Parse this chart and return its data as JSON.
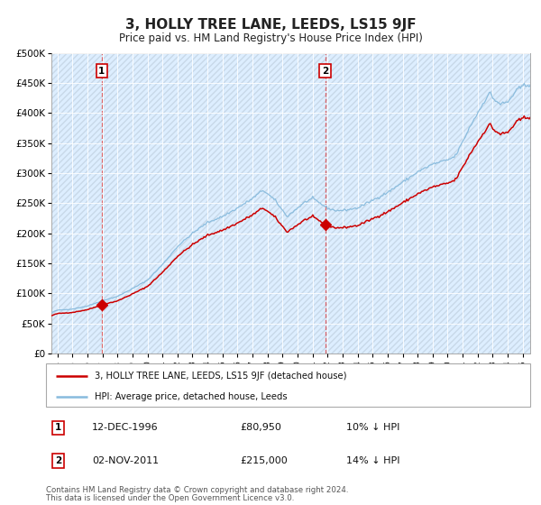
{
  "title": "3, HOLLY TREE LANE, LEEDS, LS15 9JF",
  "subtitle": "Price paid vs. HM Land Registry's House Price Index (HPI)",
  "legend_house": "3, HOLLY TREE LANE, LEEDS, LS15 9JF (detached house)",
  "legend_hpi": "HPI: Average price, detached house, Leeds",
  "annotation1_date": "12-DEC-1996",
  "annotation1_price": "£80,950",
  "annotation1_hpi": "10% ↓ HPI",
  "annotation1_year": 1996.95,
  "annotation1_value": 80950,
  "annotation2_date": "02-NOV-2011",
  "annotation2_price": "£215,000",
  "annotation2_hpi": "14% ↓ HPI",
  "annotation2_year": 2011.84,
  "annotation2_value": 215000,
  "house_color": "#cc0000",
  "hpi_color": "#88bbdd",
  "plot_bg": "#ddeeff",
  "ylim": [
    0,
    500000
  ],
  "ytick_vals": [
    0,
    50000,
    100000,
    150000,
    200000,
    250000,
    300000,
    350000,
    400000,
    450000,
    500000
  ],
  "ytick_labels": [
    "£0",
    "£50K",
    "£100K",
    "£150K",
    "£200K",
    "£250K",
    "£300K",
    "£350K",
    "£400K",
    "£450K",
    "£500K"
  ],
  "xlim_start": 1993.6,
  "xlim_end": 2025.5,
  "footer_line1": "Contains HM Land Registry data © Crown copyright and database right 2024.",
  "footer_line2": "This data is licensed under the Open Government Licence v3.0."
}
